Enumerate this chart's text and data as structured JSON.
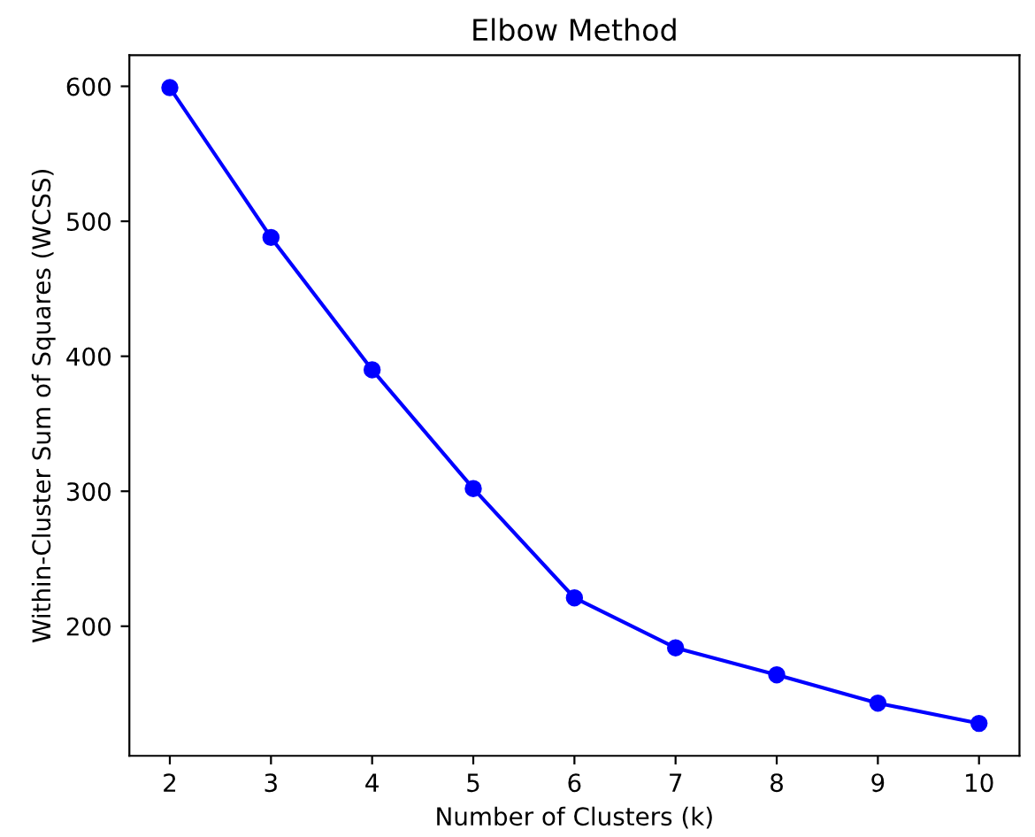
{
  "chart_data": {
    "type": "line",
    "title": "Elbow Method",
    "xlabel": "Number of Clusters (k)",
    "ylabel": "Within-Cluster Sum of Squares (WCSS)",
    "x": [
      2,
      3,
      4,
      5,
      6,
      7,
      8,
      9,
      10
    ],
    "series": [
      {
        "color": "#0000ff",
        "values": [
          599,
          488,
          390,
          302,
          221,
          184,
          164,
          143,
          128
        ]
      }
    ],
    "marker": "circle",
    "line_style": "solid",
    "xlim": [
      1.6,
      10.4
    ],
    "xticks": [
      2,
      3,
      4,
      5,
      6,
      7,
      8,
      9,
      10
    ],
    "ylim": [
      104,
      623
    ],
    "yticks": [
      200,
      300,
      400,
      500,
      600
    ],
    "grid": false,
    "legend": false
  }
}
